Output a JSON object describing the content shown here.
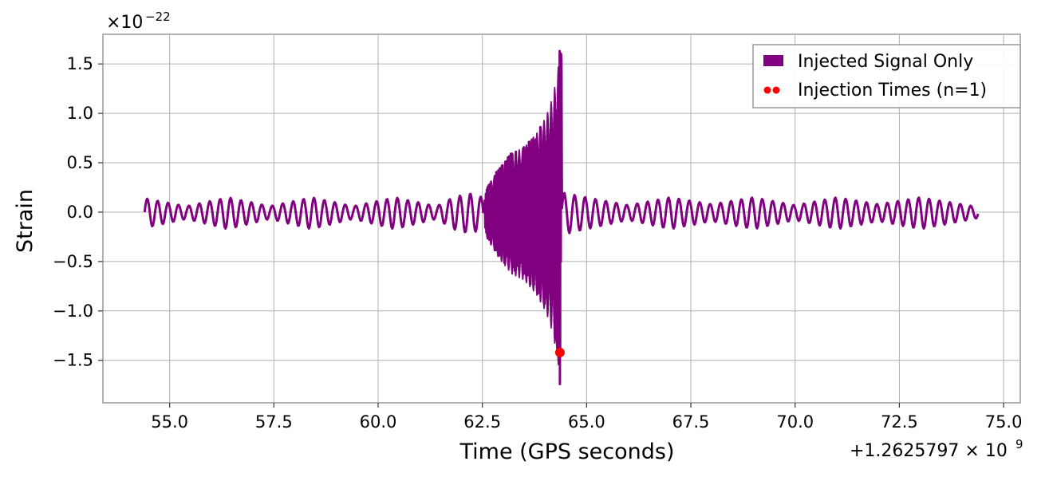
{
  "chart_data": {
    "type": "line",
    "title": "",
    "xlabel": "Time (GPS seconds)",
    "ylabel": "Strain",
    "xlim": [
      53.4,
      75.4
    ],
    "ylim": [
      -1.93,
      1.8
    ],
    "x_offset_label": "+1.2625797 × 10",
    "x_offset_exponent": "9",
    "y_scale_label": "×10",
    "y_scale_exponent": "−22",
    "grid": true,
    "legend_placement": "top-right",
    "x_ticks": [
      {
        "value": 55.0,
        "label": "55.0"
      },
      {
        "value": 57.5,
        "label": "57.5"
      },
      {
        "value": 60.0,
        "label": "60.0"
      },
      {
        "value": 62.5,
        "label": "62.5"
      },
      {
        "value": 65.0,
        "label": "65.0"
      },
      {
        "value": 67.5,
        "label": "67.5"
      },
      {
        "value": 70.0,
        "label": "70.0"
      },
      {
        "value": 72.5,
        "label": "72.5"
      },
      {
        "value": 75.0,
        "label": "75.0"
      }
    ],
    "y_ticks": [
      {
        "value": 1.5,
        "label": "1.5"
      },
      {
        "value": 1.0,
        "label": "1.0"
      },
      {
        "value": 0.5,
        "label": "0.5"
      },
      {
        "value": 0.0,
        "label": "0.0"
      },
      {
        "value": -0.5,
        "label": "−0.5"
      },
      {
        "value": -1.0,
        "label": "−1.0"
      },
      {
        "value": -1.5,
        "label": "−1.5"
      }
    ],
    "series": [
      {
        "name": "Injected Signal Only",
        "kind": "oscillating-strain",
        "color": "#800080",
        "x_start": 54.4,
        "x_end": 74.4,
        "oscillation_period": 0.25,
        "baseline_envelope": [
          [
            54.4,
            0.14
          ],
          [
            55.4,
            0.06
          ],
          [
            56.4,
            0.15
          ],
          [
            57.4,
            0.06
          ],
          [
            58.4,
            0.15
          ],
          [
            59.4,
            0.06
          ],
          [
            60.4,
            0.15
          ],
          [
            61.4,
            0.06
          ],
          [
            61.8,
            0.15
          ],
          [
            62.2,
            0.19
          ],
          [
            62.5,
            0.15
          ],
          [
            62.52,
            0.0
          ],
          [
            62.58,
            0.0
          ]
        ],
        "chirp_envelope": [
          [
            62.6,
            0.25
          ],
          [
            62.9,
            0.45
          ],
          [
            63.2,
            0.6
          ],
          [
            63.5,
            0.66
          ],
          [
            63.8,
            0.8
          ],
          [
            64.0,
            0.95
          ],
          [
            64.1,
            1.05
          ],
          [
            64.2,
            1.2
          ],
          [
            64.3,
            1.4
          ],
          [
            64.36,
            1.63
          ]
        ],
        "post_envelope": [
          [
            64.4,
            0.2
          ],
          [
            65.0,
            0.15
          ],
          [
            66.0,
            0.07
          ],
          [
            67.0,
            0.15
          ],
          [
            68.0,
            0.08
          ],
          [
            69.0,
            0.15
          ],
          [
            70.0,
            0.07
          ],
          [
            71.0,
            0.15
          ],
          [
            72.0,
            0.08
          ],
          [
            73.0,
            0.15
          ],
          [
            74.0,
            0.08
          ],
          [
            74.4,
            0.05
          ]
        ],
        "extremes": {
          "max": 1.63,
          "min": -1.74,
          "at": 64.36
        }
      }
    ],
    "markers": [
      {
        "name": "Injection Times (n=1)",
        "color": "#ff0000",
        "points": [
          {
            "x": 64.36,
            "y": -1.42
          }
        ]
      }
    ]
  },
  "legend": [
    {
      "label": "Injected Signal Only",
      "color": "#800080",
      "symbol": "patch"
    },
    {
      "label": "Injection Times (n=1)",
      "color": "#ff0000",
      "symbol": "dots"
    }
  ]
}
